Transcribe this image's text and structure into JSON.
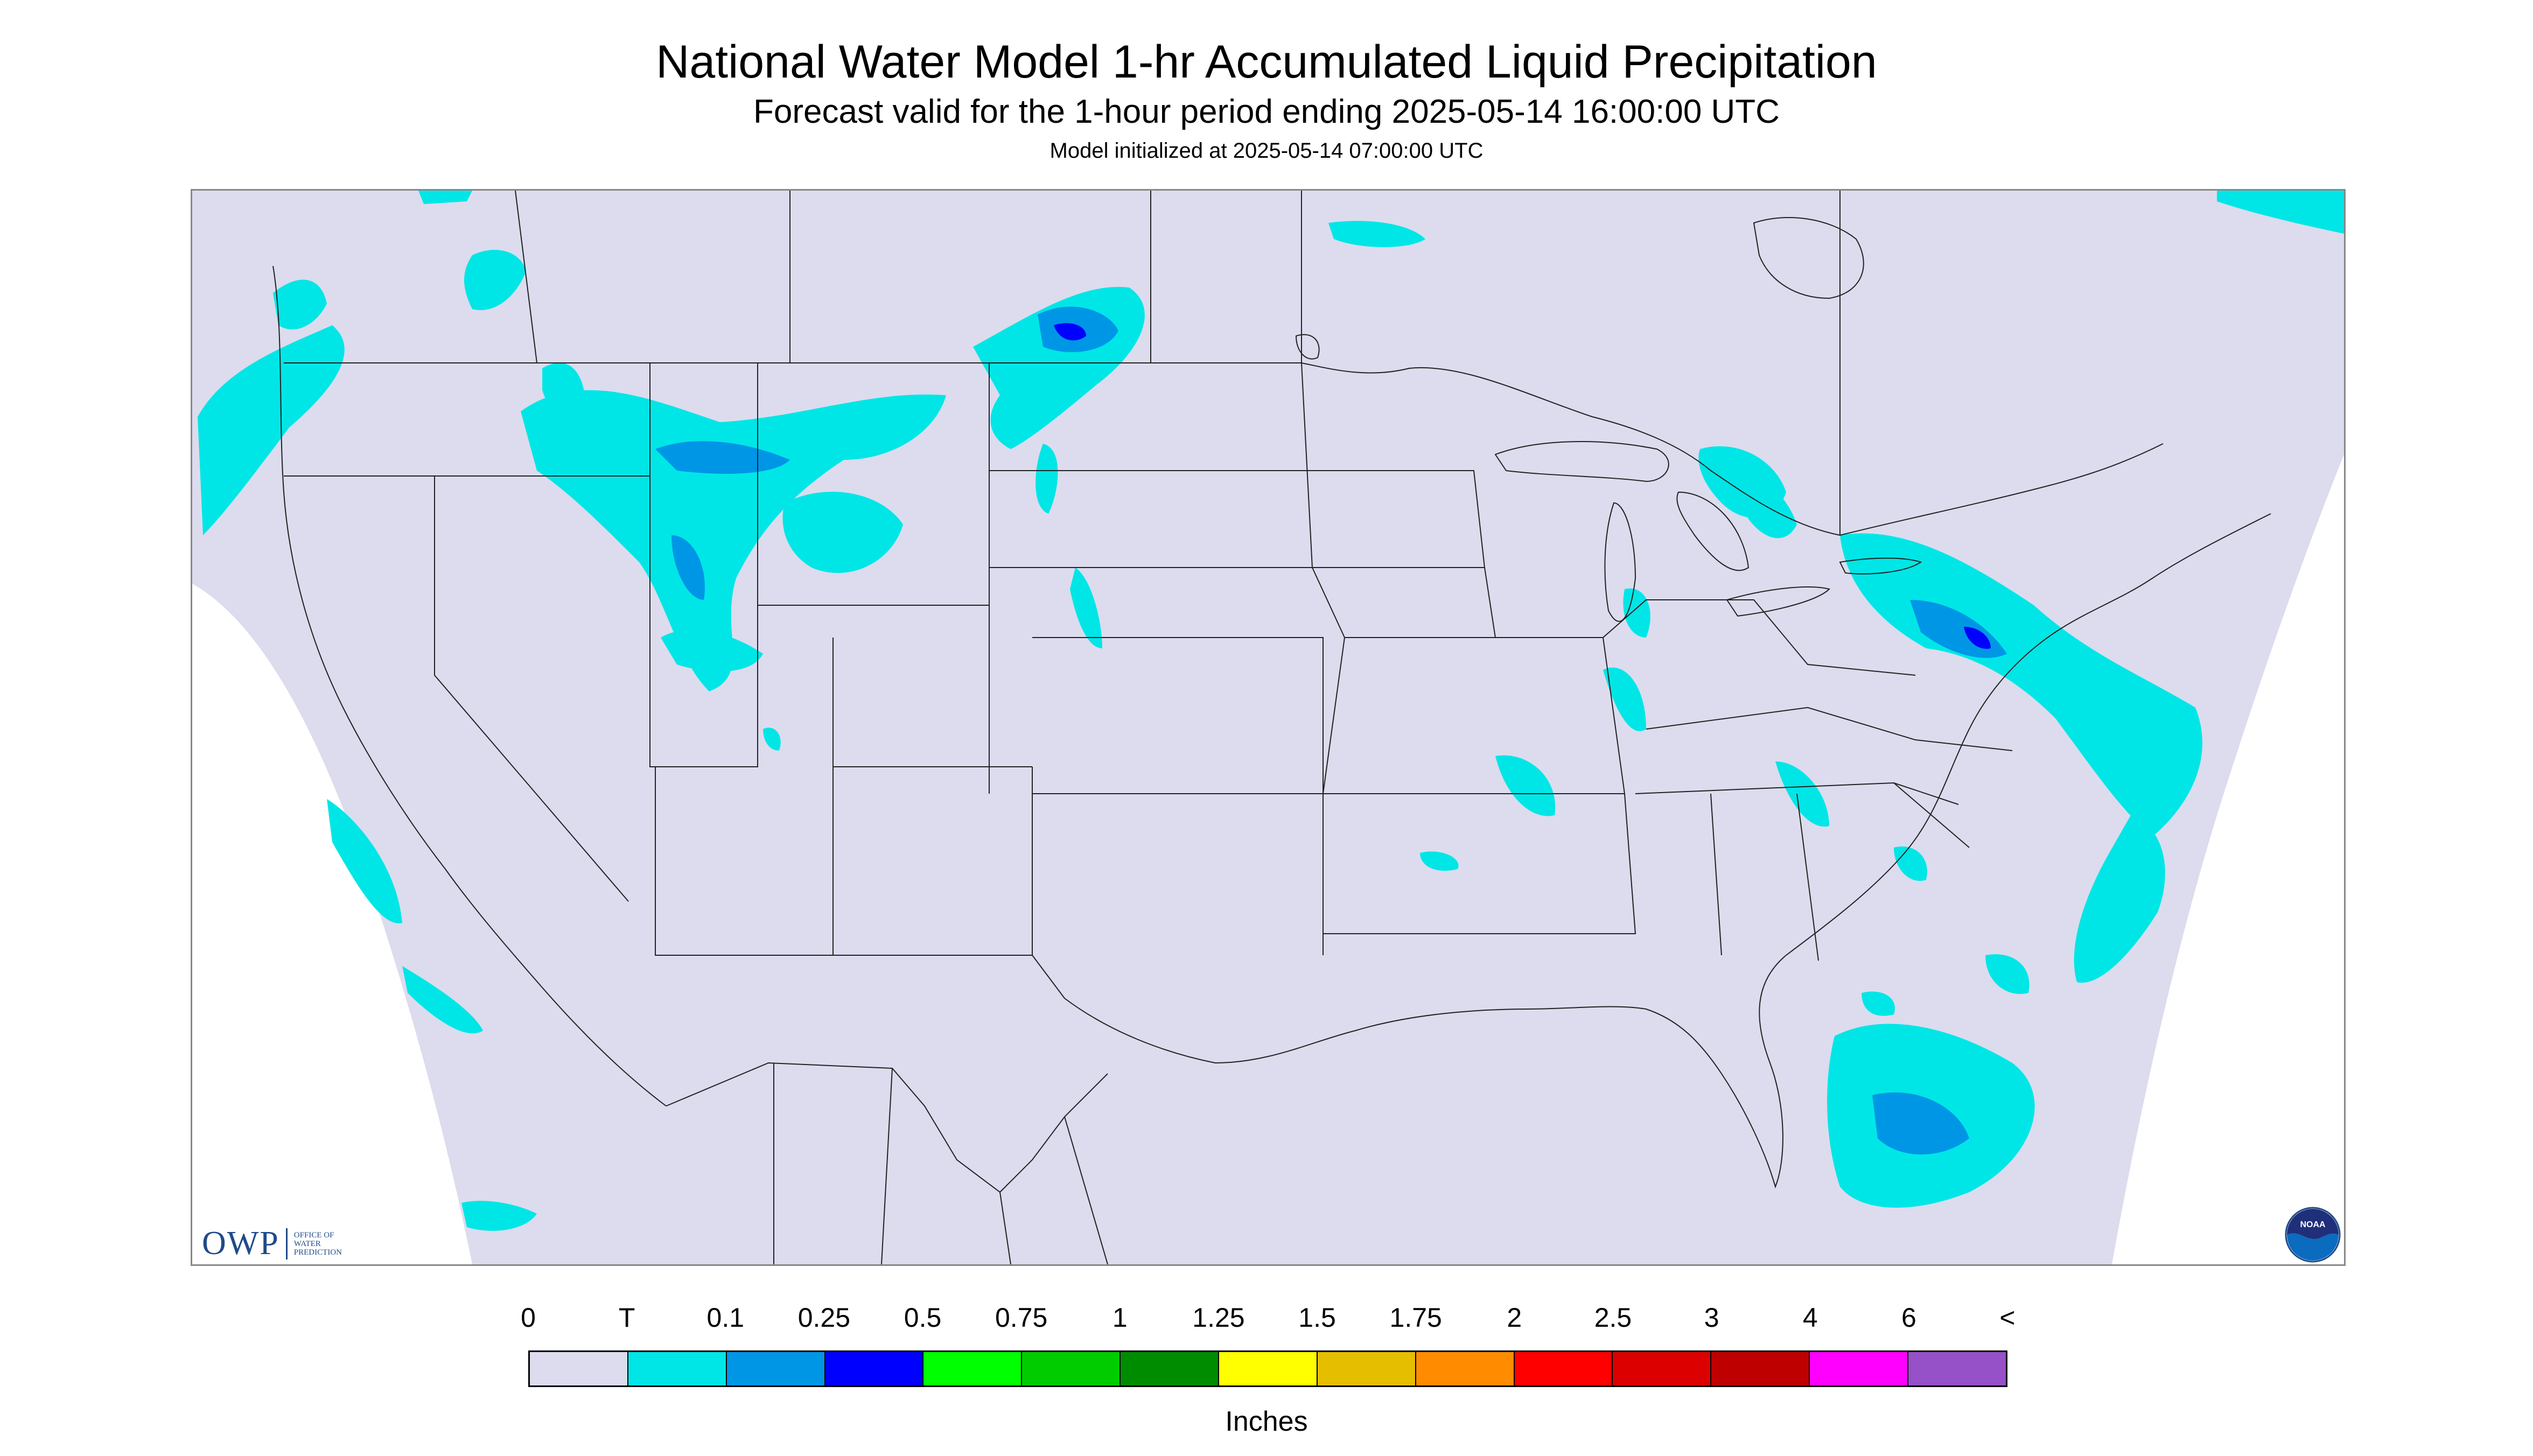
{
  "header": {
    "title": "National Water Model 1-hr Accumulated Liquid Precipitation",
    "subtitle": "Forecast valid for the 1-hour period ending 2025-05-14 16:00:00 UTC",
    "init_line": "Model initialized at 2025-05-14 07:00:00 UTC"
  },
  "map": {
    "background_color": "#ffffff",
    "domain_fill_color": "#dcdcee",
    "boundary_color": "#222222",
    "precip_colors": {
      "trace": "#00e6e6",
      "light": "#0096e6",
      "moderate": "#0000ff"
    },
    "owp_logo": {
      "letters": "OWP",
      "words": [
        "OFFICE OF",
        "WATER",
        "PREDICTION"
      ]
    },
    "noaa_logo": {
      "icon": "noaa-logo-icon",
      "text": "NOAA"
    }
  },
  "legend": {
    "labels": [
      "0",
      "T",
      "0.1",
      "0.25",
      "0.5",
      "0.75",
      "1",
      "1.25",
      "1.5",
      "1.75",
      "2",
      "2.5",
      "3",
      "4",
      "6",
      "<"
    ],
    "colors": [
      "#dcdcee",
      "#00e6e6",
      "#0096e6",
      "#0000ff",
      "#00ff00",
      "#00cc00",
      "#008c00",
      "#ffff00",
      "#e6be00",
      "#ff8c00",
      "#ff0000",
      "#dc0000",
      "#be0000",
      "#ff00ff",
      "#9650c8"
    ],
    "units": "Inches"
  }
}
